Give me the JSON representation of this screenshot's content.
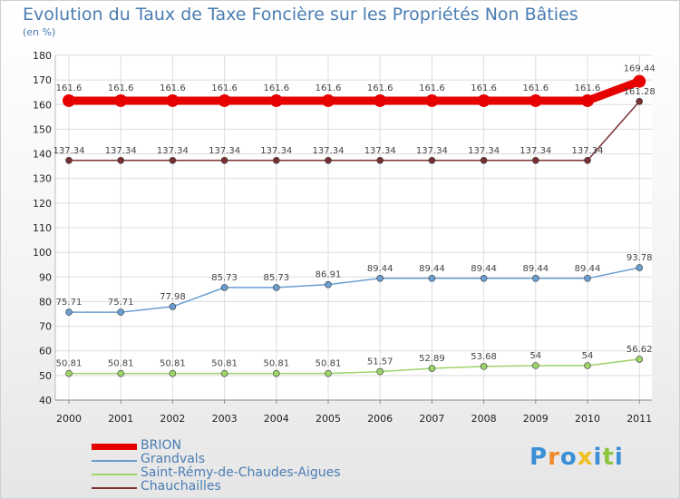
{
  "brand": {
    "letters": [
      {
        "ch": "P",
        "color": "#3a8fd6"
      },
      {
        "ch": "r",
        "color": "#f08a2c"
      },
      {
        "ch": "o",
        "color": "#3a8fd6"
      },
      {
        "ch": "x",
        "color": "#f0c020"
      },
      {
        "ch": "i",
        "color": "#3a8fd6"
      },
      {
        "ch": "t",
        "color": "#8cc63f"
      },
      {
        "ch": "i",
        "color": "#3a8fd6"
      }
    ]
  },
  "chart_data": {
    "type": "line",
    "title": "Evolution du Taux de Taxe Foncière sur les Propriétés Non Bâties",
    "ylabel": "(en %)",
    "xlabel": "",
    "ylim": [
      40,
      180
    ],
    "yticks": [
      40,
      50,
      60,
      70,
      80,
      90,
      100,
      110,
      120,
      130,
      140,
      150,
      160,
      170,
      180
    ],
    "categories": [
      "2000",
      "2001",
      "2002",
      "2003",
      "2004",
      "2005",
      "2006",
      "2007",
      "2008",
      "2009",
      "2010",
      "2011"
    ],
    "grid": true,
    "legend_position": "bottom-left",
    "series": [
      {
        "name": "BRION",
        "color": "#e60000",
        "bold": true,
        "values": [
          161.6,
          161.6,
          161.6,
          161.6,
          161.6,
          161.6,
          161.6,
          161.6,
          161.6,
          161.6,
          161.6,
          169.44
        ],
        "labels": [
          "161.6",
          "161.6",
          "161.6",
          "161.6",
          "161.6",
          "161.6",
          "161.6",
          "161.6",
          "161.6",
          "161.6",
          "161.6",
          "169.44"
        ]
      },
      {
        "name": "Grandvals",
        "color": "#6a9fcf",
        "bold": false,
        "values": [
          75.71,
          75.71,
          77.98,
          85.73,
          85.73,
          86.91,
          89.44,
          89.44,
          89.44,
          89.44,
          89.44,
          93.78
        ],
        "labels": [
          "75.71",
          "75.71",
          "77.98",
          "85.73",
          "85.73",
          "86.91",
          "89.44",
          "89.44",
          "89.44",
          "89.44",
          "89.44",
          "93.78"
        ]
      },
      {
        "name": "Saint-Rémy-de-Chaudes-Aigues",
        "color": "#9ed36a",
        "bold": false,
        "values": [
          50.81,
          50.81,
          50.81,
          50.81,
          50.81,
          50.81,
          51.57,
          52.89,
          53.68,
          54,
          54,
          56.62
        ],
        "labels": [
          "50.81",
          "50.81",
          "50.81",
          "50.81",
          "50.81",
          "50.81",
          "51.57",
          "52.89",
          "53.68",
          "54",
          "54",
          "56.62"
        ]
      },
      {
        "name": "Chauchailles",
        "color": "#7a3030",
        "bold": false,
        "values": [
          137.34,
          137.34,
          137.34,
          137.34,
          137.34,
          137.34,
          137.34,
          137.34,
          137.34,
          137.34,
          137.34,
          161.28
        ],
        "labels": [
          "137.34",
          "137.34",
          "137.34",
          "137.34",
          "137.34",
          "137.34",
          "137.34",
          "137.34",
          "137.34",
          "137.34",
          "137.34",
          "161.28"
        ]
      }
    ]
  }
}
